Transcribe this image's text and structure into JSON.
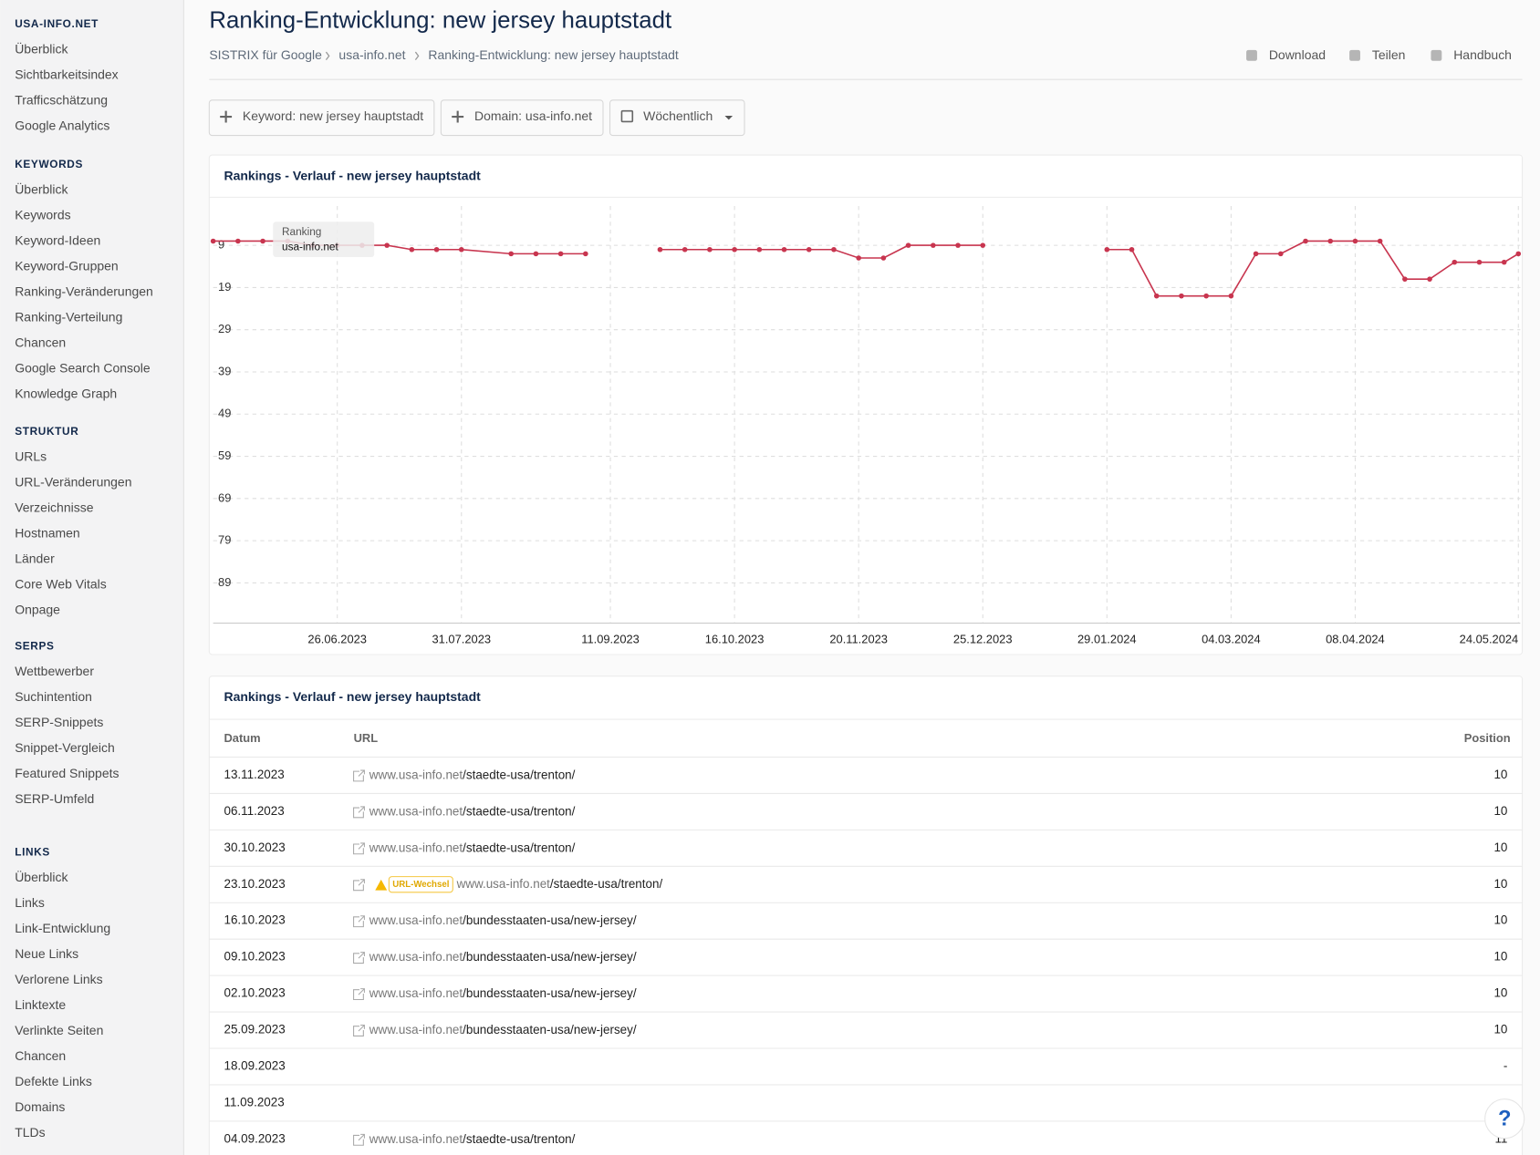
{
  "sidebar": {
    "sections": [
      {
        "heading": "USA-INFO.NET",
        "items": [
          "Überblick",
          "Sichtbarkeitsindex",
          "Trafficschätzung",
          "Google Analytics"
        ]
      },
      {
        "heading": "KEYWORDS",
        "items": [
          "Überblick",
          "Keywords",
          "Keyword-Ideen",
          "Keyword-Gruppen",
          "Ranking-Veränderungen",
          "Ranking-Verteilung",
          "Chancen",
          "Google Search Console",
          "Knowledge Graph"
        ]
      },
      {
        "heading": "STRUKTUR",
        "items": [
          "URLs",
          "URL-Veränderungen",
          "Verzeichnisse",
          "Hostnamen",
          "Länder",
          "Core Web Vitals",
          "Onpage"
        ]
      },
      {
        "heading": "SERPS",
        "items": [
          "Wettbewerber",
          "Suchintention",
          "SERP-Snippets",
          "Snippet-Vergleich",
          "Featured Snippets",
          "SERP-Umfeld"
        ]
      },
      {
        "heading": "LINKS",
        "items": [
          "Überblick",
          "Links",
          "Link-Entwicklung",
          "Neue Links",
          "Verlorene Links",
          "Linktexte",
          "Verlinkte Seiten",
          "Chancen",
          "Defekte Links",
          "Domains",
          "TLDs"
        ]
      }
    ]
  },
  "header": {
    "title": "Ranking-Entwicklung: new jersey hauptstadt",
    "breadcrumb": [
      "SISTRIX für Google",
      "usa-info.net",
      "Ranking-Entwicklung: new jersey hauptstadt"
    ],
    "actions": [
      "Download",
      "Teilen",
      "Handbuch"
    ]
  },
  "toolbar": {
    "buttons": [
      "Keyword: new jersey hauptstadt",
      "Domain: usa-info.net",
      "Wöchentlich"
    ]
  },
  "chart_data": {
    "type": "line",
    "title": "Rankings - Verlauf - new jersey hauptstadt",
    "tooltip_title": "Ranking",
    "x": [
      "22.05.2023",
      "29.05.2023",
      "05.06.2023",
      "12.06.2023",
      "19.06.2023",
      "26.06.2023",
      "03.07.2023",
      "10.07.2023",
      "17.07.2023",
      "24.07.2023",
      "31.07.2023",
      "14.08.2023",
      "21.08.2023",
      "28.08.2023",
      "04.09.2023",
      "11.09.2023",
      "18.09.2023",
      "25.09.2023",
      "02.10.2023",
      "09.10.2023",
      "16.10.2023",
      "23.10.2023",
      "30.10.2023",
      "06.11.2023",
      "13.11.2023",
      "20.11.2023",
      "27.11.2023",
      "04.12.2023",
      "11.12.2023",
      "18.12.2023",
      "25.12.2023",
      "01.01.2024",
      "08.01.2024",
      "15.01.2024",
      "22.01.2024",
      "29.01.2024",
      "05.02.2024",
      "12.02.2024",
      "19.02.2024",
      "26.02.2024",
      "04.03.2024",
      "11.03.2024",
      "18.03.2024",
      "25.03.2024",
      "01.04.2024",
      "08.04.2024",
      "15.04.2024",
      "22.04.2024",
      "29.04.2024",
      "06.05.2024",
      "13.05.2024",
      "20.05.2024",
      "24.05.2024"
    ],
    "series": [
      {
        "name": "usa-info.net",
        "color": "#c8354f",
        "values": [
          8,
          8,
          8,
          8,
          9,
          9,
          9,
          9,
          10,
          10,
          10,
          11,
          11,
          11,
          11,
          null,
          null,
          10,
          10,
          10,
          10,
          10,
          10,
          10,
          10,
          12,
          12,
          9,
          9,
          9,
          9,
          null,
          null,
          null,
          null,
          10,
          10,
          21,
          21,
          21,
          21,
          11,
          11,
          8,
          8,
          8,
          8,
          17,
          17,
          13,
          13,
          13,
          11
        ]
      }
    ],
    "xlim": [
      "22.05.2023",
      "24.05.2024"
    ],
    "xticks": [
      "26.06.2023",
      "31.07.2023",
      "11.09.2023",
      "16.10.2023",
      "20.11.2023",
      "25.12.2023",
      "29.01.2024",
      "04.03.2024",
      "08.04.2024",
      "24.05.2024"
    ],
    "ylim": [
      -1,
      99
    ],
    "yticks": [
      9,
      19,
      29,
      39,
      49,
      59,
      69,
      79,
      89
    ],
    "y_reversed": true,
    "grid": true
  },
  "table": {
    "title": "Rankings - Verlauf - new jersey hauptstadt",
    "columns": [
      "Datum",
      "URL",
      "Position"
    ],
    "url_change_label": "URL-Wechsel",
    "rows": [
      {
        "date": "13.11.2023",
        "host": "www.usa-info.net",
        "path": "/staedte-usa/trenton/",
        "position": 10
      },
      {
        "date": "06.11.2023",
        "host": "www.usa-info.net",
        "path": "/staedte-usa/trenton/",
        "position": 10
      },
      {
        "date": "30.10.2023",
        "host": "www.usa-info.net",
        "path": "/staedte-usa/trenton/",
        "position": 10
      },
      {
        "date": "23.10.2023",
        "host": "www.usa-info.net",
        "path": "/staedte-usa/trenton/",
        "position": 10,
        "url_change": true
      },
      {
        "date": "16.10.2023",
        "host": "www.usa-info.net",
        "path": "/bundesstaaten-usa/new-jersey/",
        "position": 10
      },
      {
        "date": "09.10.2023",
        "host": "www.usa-info.net",
        "path": "/bundesstaaten-usa/new-jersey/",
        "position": 10
      },
      {
        "date": "02.10.2023",
        "host": "www.usa-info.net",
        "path": "/bundesstaaten-usa/new-jersey/",
        "position": 10
      },
      {
        "date": "25.09.2023",
        "host": "www.usa-info.net",
        "path": "/bundesstaaten-usa/new-jersey/",
        "position": 10
      },
      {
        "date": "18.09.2023",
        "position": "-"
      },
      {
        "date": "11.09.2023"
      },
      {
        "date": "04.09.2023",
        "host": "www.usa-info.net",
        "path": "/staedte-usa/trenton/",
        "position": 11
      }
    ]
  },
  "help_button": "?"
}
